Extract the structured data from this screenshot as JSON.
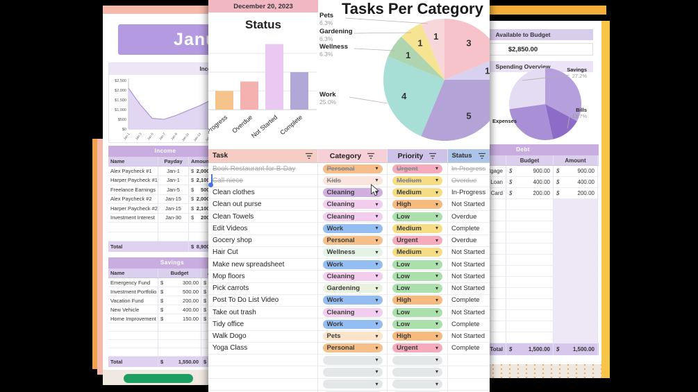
{
  "left_sheet": {
    "month_title": "January",
    "income_chart": {
      "type": "area",
      "title": "Income",
      "x": [
        "Jan-1",
        "Jan-3",
        "Jan-5",
        "Jan-7",
        "Jan-9",
        "Jan-11",
        "Jan-13",
        "Jan-15",
        "Jan-17",
        "Jan-19",
        "Jan-21",
        "Jan-23",
        "Jan-25",
        "Jan-27",
        "Jan-29",
        "Jan-31"
      ],
      "values": [
        2100,
        1250,
        550,
        500,
        700,
        950,
        1200,
        1500,
        2100,
        1900,
        1650,
        1400,
        1150,
        900,
        700,
        550
      ],
      "ylim": [
        0,
        2500
      ],
      "yticks": [
        "$2,500",
        "$2,000",
        "$1,500",
        "$1,000",
        "$500",
        "$0"
      ],
      "line_color": "#a88fd0",
      "fill_color": "#dcd0f0"
    },
    "income_table": {
      "title": "Income",
      "columns": [
        "Name",
        "Payday",
        "Amount"
      ],
      "rows": [
        {
          "name": "Alex Paycheck #1",
          "payday": "Jan-1",
          "amount": "2,000.00"
        },
        {
          "name": "Harper Paycheck #1",
          "payday": "Jan-1",
          "amount": "2,100.00"
        },
        {
          "name": "Freelance Earnings",
          "payday": "Jan-5",
          "amount": "500.00"
        },
        {
          "name": "Alex Paycheck #2",
          "payday": "Jan-15",
          "amount": "2,000.00"
        },
        {
          "name": "Harper Paycheck #2",
          "payday": "Jan-15",
          "amount": "2,100.00"
        },
        {
          "name": "Investment Interest",
          "payday": "Jan-30",
          "amount": "200.00"
        }
      ],
      "empty_rows": 2,
      "total_label": "Total",
      "total_amount": "8,900.00"
    },
    "savings_table": {
      "title": "Savings",
      "columns": [
        "Name",
        "Budget",
        "Amount"
      ],
      "rows": [
        {
          "name": "Emergency Fund",
          "budget": "300.00",
          "amount": "300.00"
        },
        {
          "name": "Investment Portfolio",
          "budget": "500.00",
          "amount": "500.00"
        },
        {
          "name": "Vacation Fund",
          "budget": "200.00",
          "amount": "200.00"
        },
        {
          "name": "New Vehicle",
          "budget": "400.00",
          "amount": "400.00"
        },
        {
          "name": "Home Improvement",
          "budget": "150.00",
          "amount": "150.00"
        }
      ],
      "empty_rows": 4,
      "total_label": "Total",
      "total_budget": "1,550.00",
      "total_amount": "1,550.00"
    }
  },
  "task_sheet": {
    "date_header": "December 20, 2023",
    "status_chart": {
      "type": "bar",
      "title": "Status",
      "categories": [
        "In-Progress",
        "Overdue",
        "Not Started",
        "Complete"
      ],
      "values": [
        2,
        3,
        7,
        4
      ],
      "colors": [
        "#f6c38b",
        "#f5b0b0",
        "#e9c9f2",
        "#b1a8d8"
      ]
    },
    "category_pie": {
      "type": "pie",
      "title": "Tasks Per Category",
      "slices": [
        {
          "label": "Personal",
          "value": 3,
          "color": "#f6c3ca"
        },
        {
          "label": "Kids",
          "value": 1,
          "color": "#d9d1f0"
        },
        {
          "label": "Cleaning",
          "value": 5,
          "color": "#b3a3d6"
        },
        {
          "label": "Work",
          "value": 4,
          "color": "#a7dfd7"
        },
        {
          "label": "Wellness",
          "value": 1,
          "color": "#afd5b0"
        },
        {
          "label": "Gardening",
          "value": 1,
          "color": "#f6e493"
        },
        {
          "label": "Pets",
          "value": 1,
          "color": "#f8d7da"
        }
      ],
      "callouts": [
        {
          "label": "Pets",
          "pct": "6.3%"
        },
        {
          "label": "Gardening",
          "pct": "6.3%"
        },
        {
          "label": "Wellness",
          "pct": "6.3%"
        },
        {
          "label": "Work",
          "pct": "25.0%"
        }
      ]
    },
    "table": {
      "columns": [
        "Task",
        "Category",
        "Priority",
        "Status"
      ],
      "category_colors": {
        "Personal": "#f6bf8a",
        "Kids": "#fbe3de",
        "Cleaning": "#f2cdee",
        "Work": "#94bdf2",
        "Wellness": "#e4f3e6",
        "Gardening": "#eaf2df",
        "Pets": "#fce4cb"
      },
      "priority_colors": {
        "Urgent": "#f5abbc",
        "Medium": "#f6dd85",
        "High": "#f6b97e",
        "Low": "#abdfab"
      },
      "empty_pill_color": "#e3e7e7",
      "rows": [
        {
          "task": "Book Restaurant for B-Day",
          "category": "Personal",
          "priority": "Urgent",
          "status": "In-Progress",
          "struck": true
        },
        {
          "task": "Call niece",
          "category": "Kids",
          "priority": "Medium",
          "status": "Overdue",
          "struck": true
        },
        {
          "task": "Clean clothes",
          "category": "Cleaning",
          "category_color_override": "#cfaee0",
          "priority": "Medium",
          "status": "In-Progress",
          "struck": false
        },
        {
          "task": "Clean out purse",
          "category": "Cleaning",
          "priority": "High",
          "status": "Not Started",
          "struck": false
        },
        {
          "task": "Clean Towels",
          "category": "Cleaning",
          "priority": "Low",
          "status": "Overdue",
          "struck": false
        },
        {
          "task": "Edit Videos",
          "category": "Work",
          "priority": "Medium",
          "status": "Complete",
          "struck": false
        },
        {
          "task": "Gocery shop",
          "category": "Personal",
          "priority": "Urgent",
          "status": "Overdue",
          "struck": false
        },
        {
          "task": "Hair Cut",
          "category": "Wellness",
          "priority": "Medium",
          "status": "Not Started",
          "struck": false
        },
        {
          "task": "Make new spreadsheet",
          "category": "Work",
          "priority": "Low",
          "status": "Not Started",
          "struck": false
        },
        {
          "task": "Mop floors",
          "category": "Cleaning",
          "priority": "Low",
          "status": "Not Started",
          "struck": false
        },
        {
          "task": "Pick carrots",
          "category": "Gardening",
          "priority": "Low",
          "status": "Not Started",
          "struck": false
        },
        {
          "task": "Post To Do List Video",
          "category": "Work",
          "priority": "High",
          "status": "Complete",
          "struck": false
        },
        {
          "task": "Take out trash",
          "category": "Cleaning",
          "priority": "Low",
          "status": "Not Started",
          "struck": false
        },
        {
          "task": "Tidy office",
          "category": "Work",
          "priority": "Low",
          "status": "Complete",
          "struck": false
        },
        {
          "task": "Walk Dogo",
          "category": "Pets",
          "priority": "High",
          "status": "Not Started",
          "struck": false
        },
        {
          "task": "Yoga Class",
          "category": "Personal",
          "priority": "Urgent",
          "status": "Complete",
          "struck": false
        }
      ],
      "empty_rows": 4
    }
  },
  "budget_sheet": {
    "available": {
      "label": "Available to Budget",
      "value": "$2,850.00"
    },
    "spending_pie": {
      "type": "pie",
      "title": "Spending Overview",
      "slices": [
        {
          "label": "",
          "value": 32.8,
          "color": "#b5a0dd"
        },
        {
          "label": "Bills",
          "value": 13.7,
          "color": "#8d6cc8"
        },
        {
          "label": "Expenses",
          "value": 26.3,
          "color": "#a98fd6"
        },
        {
          "label": "Savings",
          "value": 27.2,
          "color": "#e3dcf2"
        }
      ],
      "callouts": [
        {
          "label": "Savings",
          "pct": "27.2%"
        },
        {
          "label": "Bills",
          "pct": "13.7%"
        },
        {
          "label": "Expenses",
          "pct": ""
        }
      ]
    },
    "debt_table": {
      "title": "Debt",
      "columns": [
        "Name",
        "Budget",
        "Amount"
      ],
      "rows": [
        {
          "name": "Mortgage",
          "budget": "900.00",
          "amount": "900.00"
        },
        {
          "name": "Student Loan",
          "budget": "400.00",
          "amount": "400.00"
        },
        {
          "name": "Credit Card",
          "budget": "200.00",
          "amount": "200.00"
        }
      ],
      "empty_rows": 13,
      "total_label": "Total",
      "total_budget": "1,500.00",
      "total_amount": "1,500.00"
    }
  },
  "chart_data": [
    {
      "type": "area",
      "title": "Income",
      "x": [
        "Jan-1",
        "Jan-3",
        "Jan-5",
        "Jan-7",
        "Jan-9",
        "Jan-11",
        "Jan-13",
        "Jan-15",
        "Jan-17",
        "Jan-19",
        "Jan-21",
        "Jan-23",
        "Jan-25",
        "Jan-27",
        "Jan-29",
        "Jan-31"
      ],
      "values": [
        2100,
        1250,
        550,
        500,
        700,
        950,
        1200,
        1500,
        2100,
        1900,
        1650,
        1400,
        1150,
        900,
        700,
        550
      ],
      "ylim": [
        0,
        2500
      ],
      "yticks": [
        "$0",
        "$500",
        "$1,000",
        "$1,500",
        "$2,000",
        "$2,500"
      ]
    },
    {
      "type": "bar",
      "title": "Status",
      "categories": [
        "In-Progress",
        "Overdue",
        "Not Started",
        "Complete"
      ],
      "values": [
        2,
        3,
        7,
        4
      ]
    },
    {
      "type": "pie",
      "title": "Tasks Per Category",
      "labels": [
        "Personal",
        "Kids",
        "Cleaning",
        "Work",
        "Wellness",
        "Gardening",
        "Pets"
      ],
      "values": [
        3,
        1,
        5,
        4,
        1,
        1,
        1
      ],
      "shown_pcts": {
        "Pets": "6.3%",
        "Gardening": "6.3%",
        "Wellness": "6.3%",
        "Work": "25.0%"
      }
    },
    {
      "type": "pie",
      "title": "Spending Overview",
      "labels": [
        "",
        "Bills",
        "Expenses",
        "Savings"
      ],
      "values": [
        32.8,
        13.7,
        26.3,
        27.2
      ],
      "shown_pcts": {
        "Savings": "27.2%",
        "Bills": "13.7%"
      }
    }
  ]
}
